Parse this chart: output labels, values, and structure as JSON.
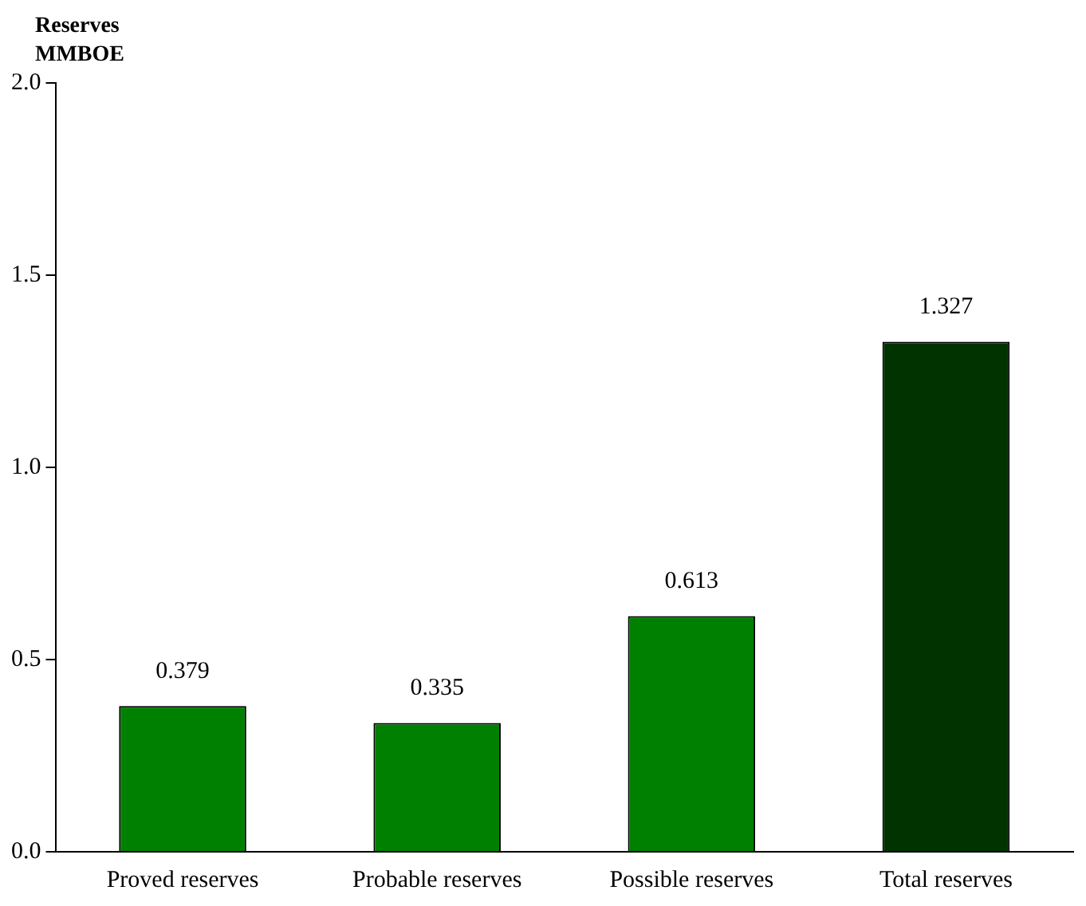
{
  "chart_data": {
    "type": "bar",
    "ylabel": "Reserves MMBOE",
    "categories": [
      "Proved reserves",
      "Probable reserves",
      "Possible reserves",
      "Total reserves"
    ],
    "values": [
      0.379,
      0.335,
      0.613,
      1.327
    ],
    "colors": [
      "#008000",
      "#008000",
      "#008000",
      "#003300"
    ],
    "ylim": [
      0,
      2
    ],
    "yticks": [
      {
        "value": 0,
        "label": "0.0"
      },
      {
        "value": 0.5,
        "label": "0.5"
      },
      {
        "value": 1,
        "label": "1.0"
      },
      {
        "value": 1.5,
        "label": "1.5"
      },
      {
        "value": 2,
        "label": "2.0"
      }
    ],
    "data_labels": true,
    "grid": false,
    "legend": false
  }
}
